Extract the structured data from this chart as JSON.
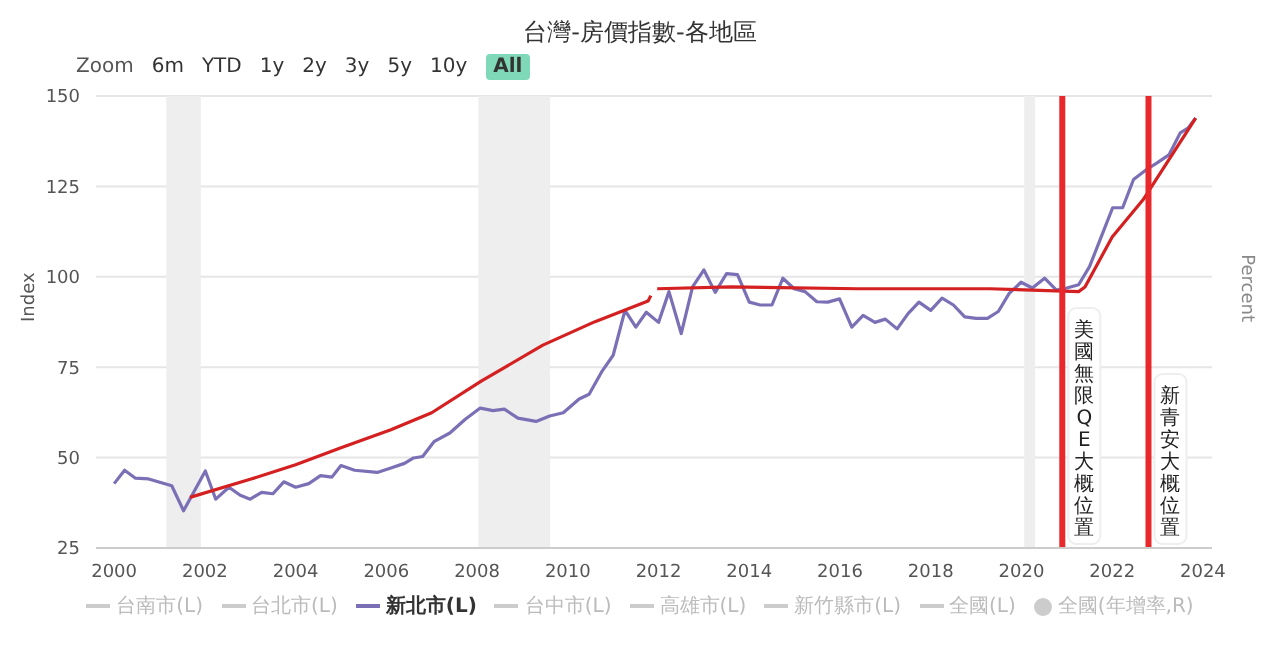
{
  "chart_data": {
    "type": "line",
    "title": "台灣-房價指數-各地區",
    "ylabel": "Index",
    "y2label": "Percent",
    "annotations": [
      "Zoom",
      "6m",
      "YTD",
      "1y",
      "2y",
      "3y",
      "5y",
      "10y",
      "All"
    ],
    "xlim": [
      1999.6,
      2024.2
    ],
    "xticks": [
      2000,
      2002,
      2004,
      2006,
      2008,
      2010,
      2012,
      2014,
      2016,
      2018,
      2020,
      2022,
      2024
    ],
    "ylim": [
      25,
      150
    ],
    "yticks": [
      25,
      50,
      75,
      100,
      125,
      150
    ],
    "grid": "y",
    "legend": "bottom",
    "bands": [
      {
        "axis": "x",
        "from": 2001.15,
        "to": 2001.91,
        "color": "#eeeeee"
      },
      {
        "axis": "x",
        "from": 2008.03,
        "to": 2009.61,
        "color": "#eeeeee"
      },
      {
        "axis": "x",
        "from": 2020.06,
        "to": 2020.3,
        "color": "#eeeeee"
      }
    ],
    "ref_lines": [
      {
        "axis": "x",
        "value": 2020.9,
        "label": "美國無限QE大概位置",
        "color": "#e8282b"
      },
      {
        "axis": "x",
        "value": 2022.8,
        "label": "新青安大概位置",
        "color": "#e8282b"
      }
    ],
    "series": [
      {
        "name": "台南市(L)",
        "color": "#cccccc"
      },
      {
        "name": "台北市(L)",
        "color": "#cccccc"
      },
      {
        "name": "新北市(L)",
        "color": "#7b6fb5",
        "x": [
          2000,
          2000.23,
          2000.47,
          2000.76,
          2001.27,
          2001.53,
          2002.01,
          2002.24,
          2002.53,
          2002.78,
          2003.0,
          2003.25,
          2003.5,
          2003.74,
          2004.0,
          2004.29,
          2004.55,
          2004.8,
          2005.0,
          2005.3,
          2005.8,
          2006.1,
          2006.4,
          2006.6,
          2006.8,
          2007.05,
          2007.4,
          2007.74,
          2008.07,
          2008.35,
          2008.6,
          2008.9,
          2009.3,
          2009.6,
          2009.9,
          2010.25,
          2010.47,
          2010.76,
          2011.0,
          2011.26,
          2011.5,
          2011.73,
          2012.0,
          2012.23,
          2012.5,
          2012.75,
          2013.0,
          2013.25,
          2013.5,
          2013.74,
          2014.0,
          2014.24,
          2014.5,
          2014.74,
          2014.99,
          2015.23,
          2015.49,
          2015.73,
          2015.99,
          2016.26,
          2016.51,
          2016.77,
          2017.0,
          2017.26,
          2017.5,
          2017.74,
          2018.0,
          2018.25,
          2018.5,
          2018.75,
          2019.0,
          2019.25,
          2019.49,
          2019.73,
          2019.99,
          2020.24,
          2020.51,
          2020.77,
          2021.0,
          2021.26,
          2021.5,
          2021.76,
          2022.01,
          2022.23,
          2022.47,
          2022.75,
          2022.99,
          2023.25,
          2023.5,
          2023.67,
          2023.84
        ],
        "values": [
          42.8,
          46.5,
          44.3,
          44.1,
          42.2,
          35.3,
          46.3,
          38.5,
          41.8,
          39.6,
          38.5,
          40.4,
          40.0,
          43.3,
          41.8,
          42.8,
          45.0,
          44.6,
          47.8,
          46.5,
          45.9,
          47.1,
          48.4,
          49.9,
          50.3,
          54.4,
          56.8,
          60.6,
          63.7,
          63.0,
          63.4,
          60.9,
          60.0,
          61.5,
          62.4,
          66.2,
          67.5,
          74.0,
          78.3,
          90.7,
          86.1,
          90.2,
          87.4,
          95.9,
          84.3,
          97.2,
          101.9,
          95.7,
          100.9,
          100.6,
          93.0,
          92.2,
          92.2,
          99.6,
          96.7,
          95.9,
          93.1,
          93.0,
          93.9,
          86.1,
          89.3,
          87.4,
          88.3,
          85.6,
          89.8,
          93.0,
          90.7,
          94.1,
          92.2,
          88.9,
          88.5,
          88.5,
          90.4,
          95.4,
          98.5,
          96.9,
          99.6,
          96.3,
          96.9,
          97.8,
          102.8,
          111.1,
          119.1,
          119.1,
          126.9,
          129.6,
          131.5,
          133.7,
          139.8,
          141.1,
          143.9
        ]
      },
      {
        "name": "台中市(L)",
        "color": "#cccccc"
      },
      {
        "name": "高雄市(L)",
        "color": "#cccccc"
      },
      {
        "name": "新竹縣市(L)",
        "color": "#cccccc"
      },
      {
        "name": "全國(L)",
        "color": "#cccccc"
      },
      {
        "name": "全國(年增率,R)",
        "color": "#cccccc",
        "axis": "y2"
      },
      {
        "type": "line",
        "color": "#d42020",
        "x": [
          2001.67,
          2003,
          2004,
          2005,
          2006.1,
          2007.0,
          2008.1,
          2009.45,
          2010.6,
          2011.77,
          2011.83,
          2011.9,
          2011.97,
          2013.6,
          2016.4,
          2019.3,
          2021.26,
          2021.4,
          2022,
          2022.68,
          2023.84
        ],
        "values": [
          39,
          44,
          48,
          52.7,
          57.7,
          62.4,
          71.2,
          81.1,
          87.6,
          93.3,
          94.8,
          null,
          96.7,
          97.2,
          96.7,
          96.7,
          95.9,
          97.2,
          111,
          121.3,
          143.9
        ]
      }
    ]
  }
}
